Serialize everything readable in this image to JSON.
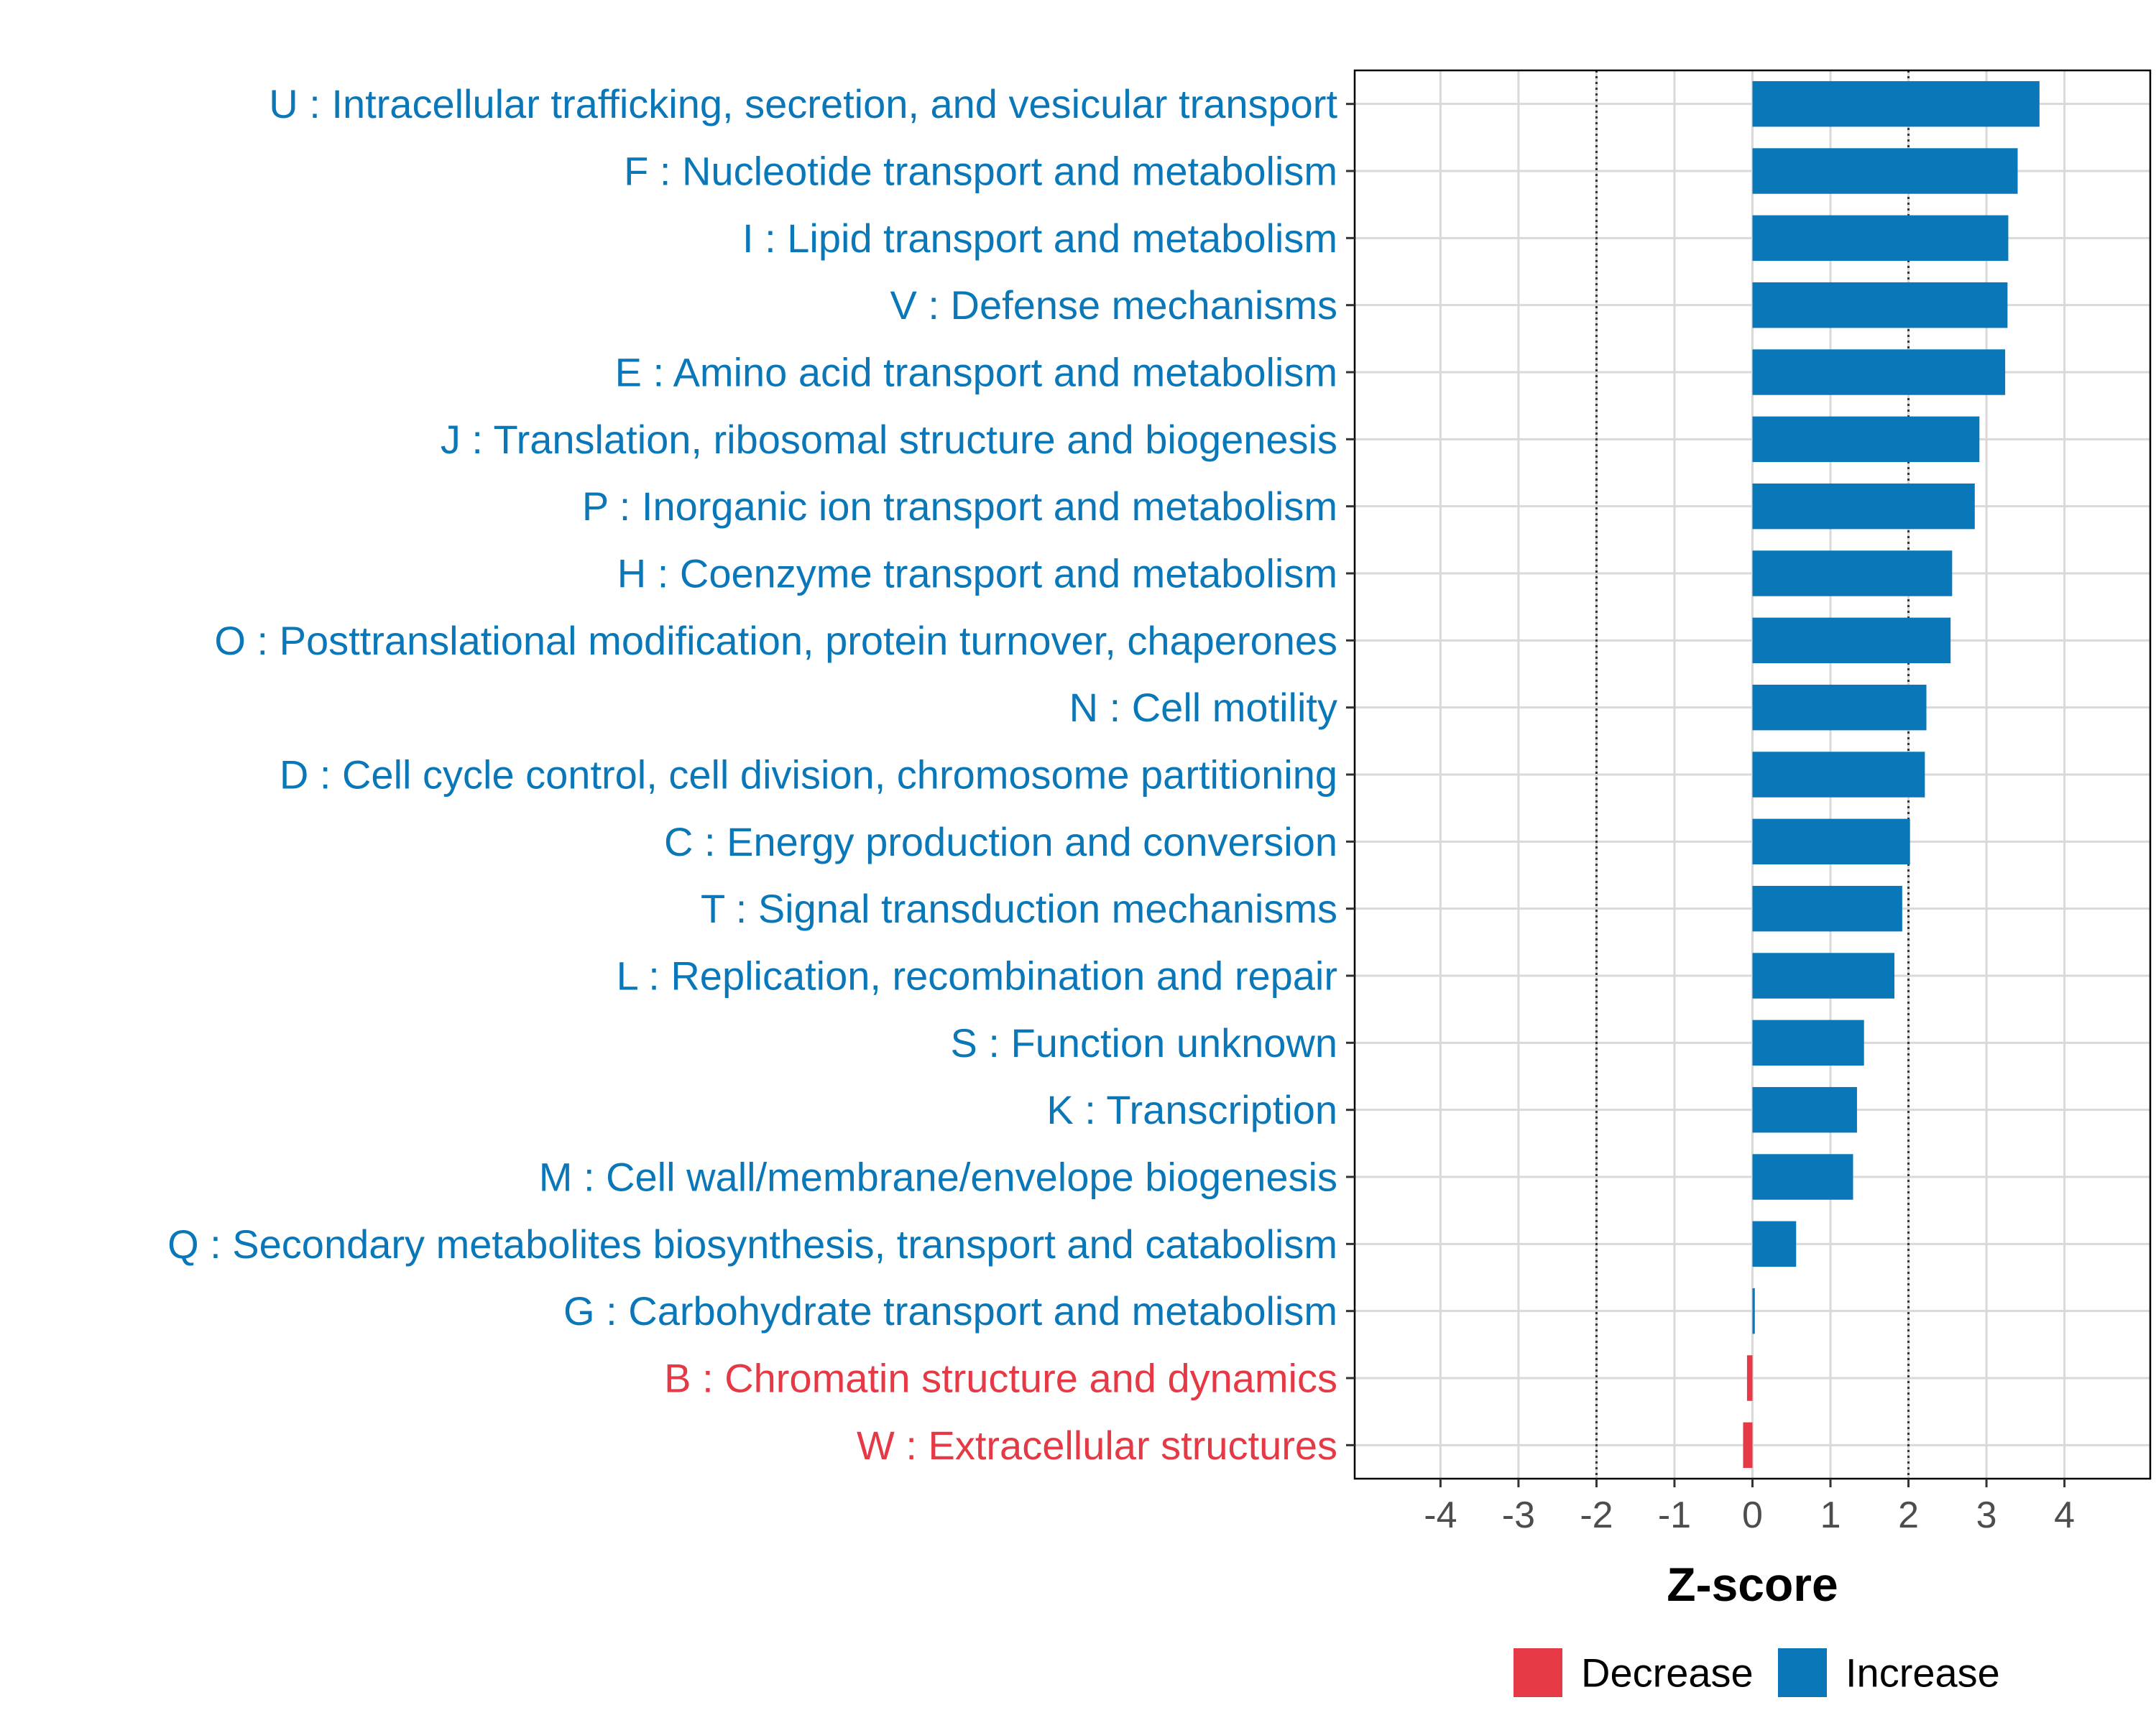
{
  "chart_data": {
    "type": "bar",
    "orientation": "horizontal",
    "xlabel": "Z-score",
    "xlim": [
      -5.1,
      5.1
    ],
    "xticks": [
      -4,
      -3,
      -2,
      -1,
      0,
      1,
      2,
      3,
      4
    ],
    "xtick_labels": [
      "-4",
      "-3",
      "-2",
      "-1",
      "0",
      "1",
      "2",
      "3",
      "4"
    ],
    "reference_lines": [
      -2,
      2
    ],
    "legend": {
      "position": "bottom",
      "entries": [
        {
          "name": "Decrease",
          "color": "#e63946"
        },
        {
          "name": "Increase",
          "color": "#0a77b8"
        }
      ]
    },
    "categories": [
      "U : Intracellular trafficking, secretion, and vesicular transport",
      "F : Nucleotide transport and metabolism",
      "I : Lipid transport and metabolism",
      "V : Defense mechanisms",
      "E : Amino acid transport and metabolism",
      "J : Translation, ribosomal structure and biogenesis",
      "P : Inorganic ion transport and metabolism",
      "H : Coenzyme transport and metabolism",
      "O : Posttranslational modification, protein turnover, chaperones",
      "N : Cell motility",
      "D : Cell cycle control, cell division, chromosome partitioning",
      "C : Energy production and conversion",
      "T : Signal transduction mechanisms",
      "L : Replication, recombination and repair",
      "S : Function unknown",
      "K : Transcription",
      "M : Cell wall/membrane/envelope biogenesis",
      "Q : Secondary metabolites biosynthesis, transport and catabolism",
      "G : Carbohydrate transport and metabolism",
      "B : Chromatin structure and dynamics",
      "W : Extracellular structures"
    ],
    "values": [
      3.68,
      3.4,
      3.28,
      3.27,
      3.24,
      2.91,
      2.85,
      2.56,
      2.54,
      2.23,
      2.21,
      2.02,
      1.92,
      1.82,
      1.43,
      1.34,
      1.29,
      0.56,
      0.03,
      -0.07,
      -0.12
    ],
    "groups": [
      "Increase",
      "Increase",
      "Increase",
      "Increase",
      "Increase",
      "Increase",
      "Increase",
      "Increase",
      "Increase",
      "Increase",
      "Increase",
      "Increase",
      "Increase",
      "Increase",
      "Increase",
      "Increase",
      "Increase",
      "Increase",
      "Increase",
      "Decrease",
      "Decrease"
    ]
  }
}
